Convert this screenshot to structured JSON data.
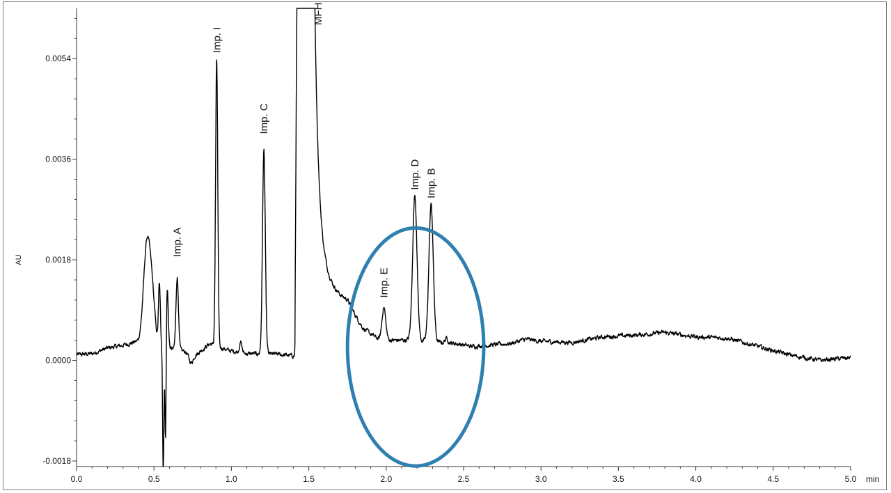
{
  "chart_data": {
    "type": "line",
    "ylabel": "AU",
    "x_unit": "min",
    "xlim": [
      0.0,
      5.0
    ],
    "ylim": [
      -0.0019,
      0.0063
    ],
    "x_ticks": [
      "0.0",
      "0.5",
      "1.0",
      "1.5",
      "2.0",
      "2.5",
      "3.0",
      "3.5",
      "4.0",
      "4.5",
      "5.0"
    ],
    "y_ticks": [
      "0.0054",
      "0.0036",
      "0.0018",
      "0.0000",
      "-0.0018"
    ],
    "grid": false,
    "line_color": "#000000",
    "highlight_color": "#2f7fb0",
    "highlight_ellipse": {
      "x_center": 2.19,
      "y_center": 0.00024,
      "x_radius": 0.44,
      "y_radius": 0.00213
    },
    "baseline": [
      [
        0.0,
        0.0001
      ],
      [
        0.1,
        0.00012
      ],
      [
        0.2,
        0.00022
      ],
      [
        0.3,
        0.00027
      ],
      [
        0.38,
        0.00033
      ],
      [
        0.78,
        0.00012
      ],
      [
        0.86,
        0.0003
      ],
      [
        0.98,
        0.00018
      ],
      [
        1.1,
        0.00012
      ],
      [
        1.3,
        0.00011
      ],
      [
        1.4,
        8e-05
      ],
      [
        1.75,
        0.0007
      ],
      [
        1.85,
        0.0004
      ],
      [
        1.95,
        0.0003
      ],
      [
        2.05,
        0.00032
      ],
      [
        2.15,
        0.00035
      ],
      [
        2.45,
        0.0003
      ],
      [
        2.55,
        0.00025
      ],
      [
        2.7,
        0.00028
      ],
      [
        2.8,
        0.0003
      ],
      [
        2.9,
        0.00038
      ],
      [
        3.0,
        0.00034
      ],
      [
        3.2,
        0.00032
      ],
      [
        3.4,
        0.00042
      ],
      [
        3.6,
        0.00045
      ],
      [
        3.8,
        0.0005
      ],
      [
        4.0,
        0.00042
      ],
      [
        4.2,
        0.0004
      ],
      [
        4.4,
        0.00025
      ],
      [
        4.6,
        0.0001
      ],
      [
        4.8,
        0.0
      ],
      [
        5.0,
        5e-05
      ]
    ],
    "peaks": [
      {
        "x": 0.455,
        "height": 0.0018,
        "width": 0.022
      },
      {
        "x": 0.49,
        "height": 0.0007,
        "width": 0.018
      },
      {
        "x": 0.535,
        "height": 0.0011,
        "width": 0.006
      },
      {
        "x": 0.585,
        "height": 0.0011,
        "width": 0.007
      },
      {
        "x": 0.65,
        "height": 0.0013,
        "width": 0.008
      },
      {
        "x": 0.905,
        "height": 0.00515,
        "width": 0.007
      },
      {
        "x": 1.06,
        "height": 0.00018,
        "width": 0.008
      },
      {
        "x": 1.21,
        "height": 0.00365,
        "width": 0.009
      },
      {
        "x": 1.985,
        "height": 0.00058,
        "width": 0.012
      },
      {
        "x": 2.185,
        "height": 0.0026,
        "width": 0.014
      },
      {
        "x": 2.29,
        "height": 0.00245,
        "width": 0.014
      },
      {
        "x": 2.39,
        "height": 8e-05,
        "width": 0.01
      }
    ],
    "negative_peaks": [
      {
        "x": 0.56,
        "depth": 0.0023,
        "width": 0.004
      },
      {
        "x": 0.575,
        "depth": 0.002,
        "width": 0.004
      }
    ],
    "dips": [
      {
        "x": 0.74,
        "depth": 0.00018,
        "width": 0.015
      }
    ],
    "off_scale_peak": {
      "x": 1.475,
      "x_rise_start": 1.41,
      "x_rise_end": 1.425,
      "x_fall_start": 1.525,
      "tail_tau": 0.13
    },
    "annotations": [
      {
        "text": "Imp. A",
        "x": 0.65,
        "y": 0.00185
      },
      {
        "text": "Imp. I",
        "x": 0.905,
        "y": 0.0055
      },
      {
        "text": "Imp. C",
        "x": 1.21,
        "y": 0.00405
      },
      {
        "text": "MFH",
        "x": 1.56,
        "y": 0.006
      },
      {
        "text": "Imp. E",
        "x": 1.985,
        "y": 0.00112
      },
      {
        "text": "Imp. D",
        "x": 2.185,
        "y": 0.00305
      },
      {
        "text": "Imp. B",
        "x": 2.29,
        "y": 0.0029
      }
    ]
  }
}
